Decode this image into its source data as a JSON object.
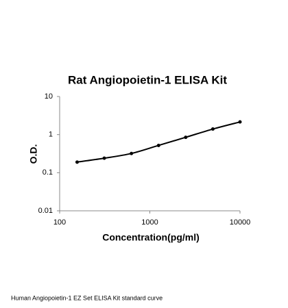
{
  "chart_data": {
    "type": "scatter",
    "title": "Rat Angiopoietin-1 ELISA Kit",
    "x_label": "Concentration(pg/ml)",
    "y_label": "O.D.",
    "caption": "Human Angiopoietin-1 EZ Set ELISA Kit standard curve",
    "x": [
      156.25,
      312.5,
      625,
      1250,
      2500,
      5000,
      10000
    ],
    "values": [
      0.19,
      0.24,
      0.32,
      0.52,
      0.85,
      1.4,
      2.15
    ],
    "color": "#000000",
    "line": true,
    "xlog": true,
    "ylog": true,
    "xlim": [
      100,
      10000
    ],
    "ylim": [
      0.01,
      10
    ],
    "xticks": [
      100,
      1000,
      10000
    ],
    "yticks": [
      0.01,
      0.1,
      1,
      10
    ],
    "grid": false
  }
}
